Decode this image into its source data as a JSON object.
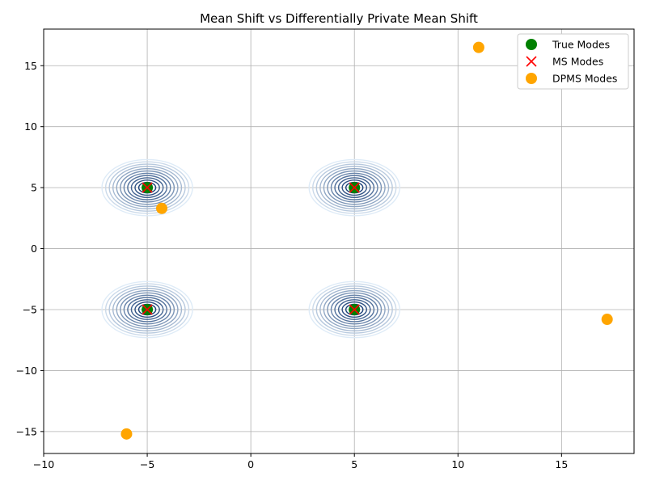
{
  "chart_data": {
    "type": "scatter",
    "title": "Mean Shift vs Differentially Private Mean Shift",
    "xlabel": "",
    "ylabel": "",
    "xlim": [
      -10,
      18.5
    ],
    "ylim": [
      -16.8,
      18
    ],
    "xticks": [
      -10,
      -5,
      0,
      5,
      10,
      15
    ],
    "yticks": [
      -15,
      -10,
      -5,
      0,
      5,
      10,
      15
    ],
    "grid": true,
    "legend_position": "top-right",
    "density_centers": [
      [
        -5,
        5
      ],
      [
        5,
        5
      ],
      [
        -5,
        -5
      ],
      [
        5,
        -5
      ]
    ],
    "series": [
      {
        "name": "True Modes",
        "marker": "circle",
        "color": "#008000",
        "points": [
          [
            -5,
            5
          ],
          [
            5,
            5
          ],
          [
            -5,
            -5
          ],
          [
            5,
            -5
          ]
        ]
      },
      {
        "name": "MS Modes",
        "marker": "x",
        "color": "#ff0000",
        "points": [
          [
            -5,
            5
          ],
          [
            5,
            5
          ],
          [
            -5,
            -5
          ],
          [
            5,
            -5
          ]
        ]
      },
      {
        "name": "DPMS Modes",
        "marker": "circle",
        "color": "#ffa500",
        "points": [
          [
            11,
            16.5
          ],
          [
            -4.3,
            3.3
          ],
          [
            17.2,
            -5.8
          ],
          [
            -6,
            -15.2
          ]
        ]
      }
    ]
  }
}
